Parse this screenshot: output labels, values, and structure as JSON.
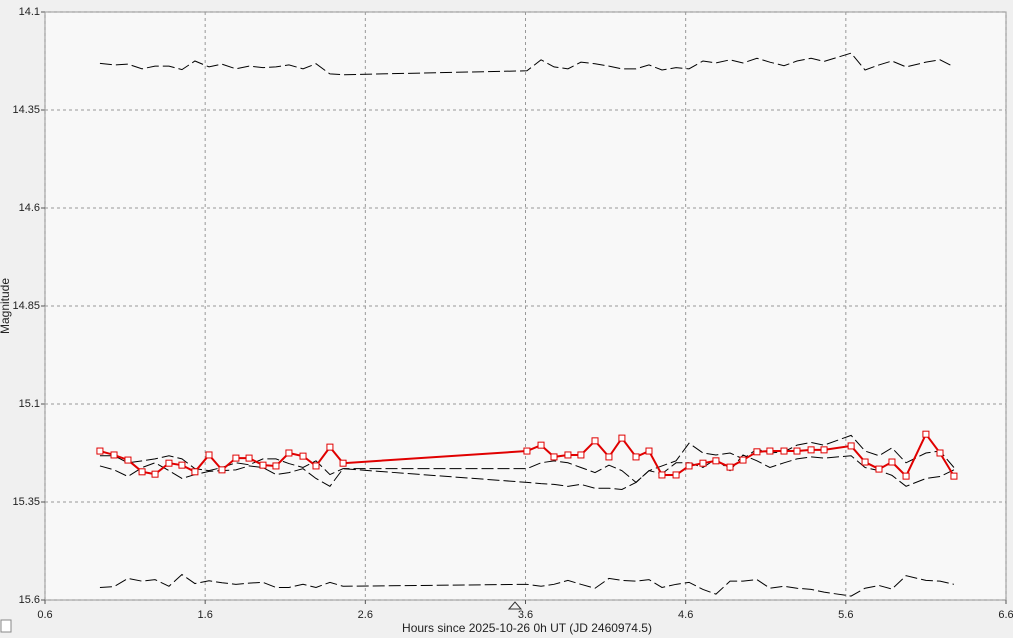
{
  "chart_data": {
    "type": "line",
    "y_label": "Magnitude",
    "x_label": "Hours since 2025-10-26 0h UT (JD 2460974.5)",
    "x": [
      0.943,
      1.031,
      1.118,
      1.206,
      1.287,
      1.374,
      1.455,
      1.536,
      1.624,
      1.705,
      1.792,
      1.874,
      1.961,
      2.042,
      2.123,
      2.211,
      2.292,
      2.379,
      2.461,
      3.609,
      3.697,
      3.778,
      3.865,
      3.946,
      4.034,
      4.121,
      4.202,
      4.29,
      4.371,
      4.452,
      4.54,
      4.621,
      4.708,
      4.789,
      4.877,
      4.958,
      5.045,
      5.126,
      5.214,
      5.295,
      5.383,
      5.464,
      5.633,
      5.72,
      5.807,
      5.888,
      5.976,
      6.1,
      6.188,
      6.275
    ],
    "series": [
      {
        "color": "#000000",
        "dashed": true,
        "markers": false,
        "values": [
          14.231,
          14.235,
          14.233,
          14.245,
          14.238,
          14.238,
          14.247,
          14.225,
          14.24,
          14.233,
          14.245,
          14.238,
          14.242,
          14.24,
          14.235,
          14.245,
          14.232,
          14.258,
          14.26,
          14.25,
          14.222,
          14.24,
          14.245,
          14.228,
          14.232,
          14.238,
          14.245,
          14.245,
          14.235,
          14.248,
          14.242,
          14.245,
          14.225,
          14.23,
          14.222,
          14.23,
          14.218,
          14.228,
          14.237,
          14.225,
          14.218,
          14.226,
          14.205,
          14.248,
          14.235,
          14.225,
          14.24,
          14.228,
          14.222,
          14.24
        ]
      },
      {
        "color": "#000000",
        "dashed": true,
        "markers": false,
        "values": [
          15.258,
          15.268,
          15.285,
          15.262,
          15.25,
          15.27,
          15.29,
          15.28,
          15.272,
          15.27,
          15.268,
          15.258,
          15.262,
          15.28,
          15.275,
          15.265,
          15.29,
          15.31,
          15.265,
          15.3,
          15.303,
          15.305,
          15.31,
          15.305,
          15.315,
          15.315,
          15.318,
          15.3,
          15.27,
          15.258,
          15.245,
          15.2,
          15.225,
          15.23,
          15.225,
          15.24,
          15.215,
          15.225,
          15.222,
          15.205,
          15.198,
          15.205,
          15.18,
          15.22,
          15.232,
          15.212,
          15.25,
          15.225,
          15.22,
          15.262
        ]
      },
      {
        "color": "#000000",
        "dashed": true,
        "markers": false,
        "values": [
          15.232,
          15.232,
          15.25,
          15.245,
          15.24,
          15.232,
          15.24,
          15.265,
          15.27,
          15.262,
          15.25,
          15.255,
          15.24,
          15.24,
          15.252,
          15.262,
          15.245,
          15.28,
          15.265,
          15.265,
          15.25,
          15.245,
          15.25,
          15.262,
          15.275,
          15.256,
          15.27,
          15.3,
          15.27,
          15.278,
          15.25,
          15.25,
          15.262,
          15.24,
          15.27,
          15.23,
          15.245,
          15.262,
          15.25,
          15.24,
          15.235,
          15.238,
          15.232,
          15.262,
          15.27,
          15.282,
          15.31,
          15.29,
          15.285,
          15.268
        ]
      },
      {
        "color": "#000000",
        "dashed": true,
        "markers": false,
        "values": [
          15.568,
          15.566,
          15.545,
          15.552,
          15.548,
          15.565,
          15.535,
          15.558,
          15.551,
          15.556,
          15.56,
          15.557,
          15.555,
          15.568,
          15.568,
          15.56,
          15.568,
          15.555,
          15.565,
          15.56,
          15.565,
          15.56,
          15.55,
          15.56,
          15.57,
          15.545,
          15.55,
          15.552,
          15.548,
          15.568,
          15.56,
          15.555,
          15.573,
          15.585,
          15.552,
          15.552,
          15.548,
          15.57,
          15.565,
          15.57,
          15.573,
          15.58,
          15.59,
          15.57,
          15.563,
          15.572,
          15.538,
          15.55,
          15.552,
          15.56
        ]
      },
      {
        "color": "#e00000",
        "dashed": false,
        "markers": true,
        "values": [
          15.22,
          15.23,
          15.243,
          15.273,
          15.279,
          15.251,
          15.256,
          15.273,
          15.23,
          15.268,
          15.238,
          15.238,
          15.256,
          15.258,
          15.225,
          15.233,
          15.258,
          15.21,
          15.251,
          15.22,
          15.205,
          15.235,
          15.23,
          15.23,
          15.194,
          15.235,
          15.187,
          15.235,
          15.22,
          15.281,
          15.281,
          15.258,
          15.251,
          15.245,
          15.261,
          15.243,
          15.222,
          15.22,
          15.22,
          15.22,
          15.217,
          15.217,
          15.207,
          15.248,
          15.266,
          15.248,
          15.284,
          15.177,
          15.225,
          15.284
        ]
      }
    ],
    "xlim": [
      0.6,
      6.6
    ],
    "xticks": [
      0.6,
      1.6,
      2.6,
      3.6,
      4.6,
      5.6,
      6.6
    ],
    "ylim": [
      14.1,
      15.6
    ],
    "yticks": [
      14.1,
      14.35,
      14.6,
      14.85,
      15.1,
      15.35,
      15.6
    ],
    "y_inverted": true,
    "grid": true
  }
}
